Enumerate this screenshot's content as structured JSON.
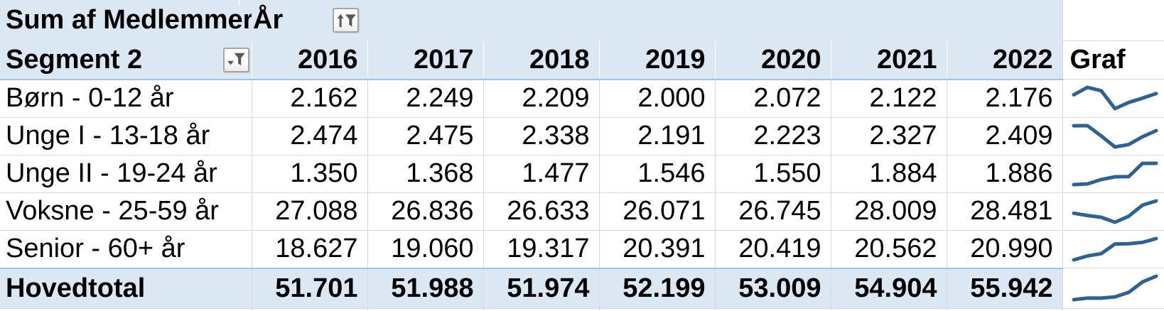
{
  "pivot": {
    "value_field_label": "Sum af Medlemmer",
    "column_field_label": "År",
    "row_field_label": "Segment 2",
    "graf_column_label": "Graf",
    "years": [
      "2016",
      "2017",
      "2018",
      "2019",
      "2020",
      "2021",
      "2022"
    ],
    "rows": [
      {
        "label": "Børn - 0-12 år",
        "display": [
          "2.162",
          "2.249",
          "2.209",
          "2.000",
          "2.072",
          "2.122",
          "2.176"
        ],
        "values": [
          2162,
          2249,
          2209,
          2000,
          2072,
          2122,
          2176
        ]
      },
      {
        "label": "Unge I - 13-18 år",
        "display": [
          "2.474",
          "2.475",
          "2.338",
          "2.191",
          "2.223",
          "2.327",
          "2.409"
        ],
        "values": [
          2474,
          2475,
          2338,
          2191,
          2223,
          2327,
          2409
        ]
      },
      {
        "label": "Unge II - 19-24 år",
        "display": [
          "1.350",
          "1.368",
          "1.477",
          "1.546",
          "1.550",
          "1.884",
          "1.886"
        ],
        "values": [
          1350,
          1368,
          1477,
          1546,
          1550,
          1884,
          1886
        ]
      },
      {
        "label": "Voksne - 25-59 år",
        "display": [
          "27.088",
          "26.836",
          "26.633",
          "26.071",
          "26.745",
          "28.009",
          "28.481"
        ],
        "values": [
          27088,
          26836,
          26633,
          26071,
          26745,
          28009,
          28481
        ]
      },
      {
        "label": "Senior - 60+ år",
        "display": [
          "18.627",
          "19.060",
          "19.317",
          "20.391",
          "20.419",
          "20.562",
          "20.990"
        ],
        "values": [
          18627,
          19060,
          19317,
          20391,
          20419,
          20562,
          20990
        ]
      }
    ],
    "total": {
      "label": "Hovedtotal",
      "display": [
        "51.701",
        "51.988",
        "51.974",
        "52.199",
        "53.009",
        "54.904",
        "55.942"
      ],
      "values": [
        51701,
        51988,
        51974,
        52199,
        53009,
        54904,
        55942
      ]
    }
  },
  "icons": {
    "year_filter": "sort-ascending-filter-icon",
    "segment_filter": "dropdown-filter-icon"
  },
  "colors": {
    "header_fill": "#DBE8F4",
    "header_border": "#9DC3E6",
    "gridline": "#D9D9D9",
    "sparkline": "#31618F",
    "icon_gray": "#595959",
    "text": "#000000"
  }
}
